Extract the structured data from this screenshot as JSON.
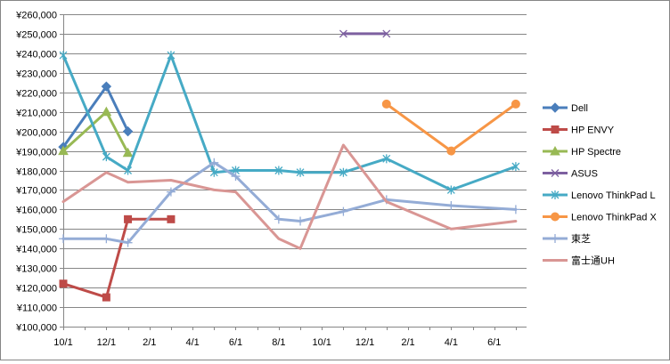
{
  "chart_data": {
    "type": "line",
    "title": "",
    "xlabel": "",
    "ylabel": "",
    "ylim": [
      100000,
      260000
    ],
    "yticks": [
      "¥100,000",
      "¥110,000",
      "¥120,000",
      "¥130,000",
      "¥140,000",
      "¥150,000",
      "¥160,000",
      "¥170,000",
      "¥180,000",
      "¥190,000",
      "¥200,000",
      "¥210,000",
      "¥220,000",
      "¥230,000",
      "¥240,000",
      "¥250,000",
      "¥260,000"
    ],
    "xtick_labels": [
      "10/1",
      "12/1",
      "2/1",
      "4/1",
      "6/1",
      "8/1",
      "10/1",
      "12/1",
      "2/1",
      "4/1",
      "6/1"
    ],
    "x_unit": "months (10/1 = 0, 12/1 = 2, next 2/1 = 4, …)",
    "xlim": [
      0,
      21.5
    ],
    "grid": "horizontal",
    "legend_position": "right",
    "series": [
      {
        "name": "Dell",
        "color": "#4a7ebb",
        "marker": "diamond",
        "points": [
          [
            0,
            192000
          ],
          [
            2,
            223000
          ],
          [
            3,
            200000
          ]
        ]
      },
      {
        "name": "HP ENVY",
        "color": "#be4b48",
        "marker": "square",
        "points": [
          [
            0,
            122000
          ],
          [
            2,
            115000
          ],
          [
            3,
            155000
          ],
          [
            5,
            155000
          ]
        ]
      },
      {
        "name": "HP Spectre",
        "color": "#98b954",
        "marker": "triangle",
        "points": [
          [
            0,
            190000
          ],
          [
            2,
            210000
          ],
          [
            3,
            189000
          ]
        ]
      },
      {
        "name": "ASUS",
        "color": "#7d60a0",
        "marker": "x",
        "points": [
          [
            13,
            250000
          ],
          [
            15,
            250000
          ]
        ]
      },
      {
        "name": "Lenovo ThinkPad L",
        "color": "#46aac5",
        "marker": "asterisk",
        "points": [
          [
            0,
            239000
          ],
          [
            2,
            187000
          ],
          [
            3,
            180000
          ],
          [
            5,
            239000
          ],
          [
            7,
            179000
          ],
          [
            8,
            180000
          ],
          [
            10,
            180000
          ],
          [
            11,
            179000
          ],
          [
            13,
            179000
          ],
          [
            15,
            186000
          ],
          [
            18,
            170000
          ],
          [
            21,
            182000
          ]
        ]
      },
      {
        "name": "Lenovo ThinkPad X",
        "color": "#f79646",
        "marker": "circle",
        "points": [
          [
            15,
            214000
          ],
          [
            18,
            190000
          ],
          [
            21,
            214000
          ]
        ]
      },
      {
        "name": "東芝",
        "color": "#94acd6",
        "marker": "plus",
        "points": [
          [
            0,
            145000
          ],
          [
            2,
            145000
          ],
          [
            3,
            143000
          ],
          [
            5,
            169000
          ],
          [
            7,
            184000
          ],
          [
            8,
            177000
          ],
          [
            10,
            155000
          ],
          [
            11,
            154000
          ],
          [
            13,
            159000
          ],
          [
            15,
            165000
          ],
          [
            18,
            162000
          ],
          [
            21,
            160000
          ]
        ]
      },
      {
        "name": "富士通UH",
        "color": "#d99694",
        "marker": "none",
        "points": [
          [
            0,
            164000
          ],
          [
            2,
            179000
          ],
          [
            3,
            174000
          ],
          [
            5,
            175000
          ],
          [
            7,
            170000
          ],
          [
            8,
            169000
          ],
          [
            10,
            145000
          ],
          [
            11,
            140000
          ],
          [
            13,
            193000
          ],
          [
            15,
            164000
          ],
          [
            18,
            150000
          ],
          [
            21,
            154000
          ]
        ]
      }
    ]
  }
}
